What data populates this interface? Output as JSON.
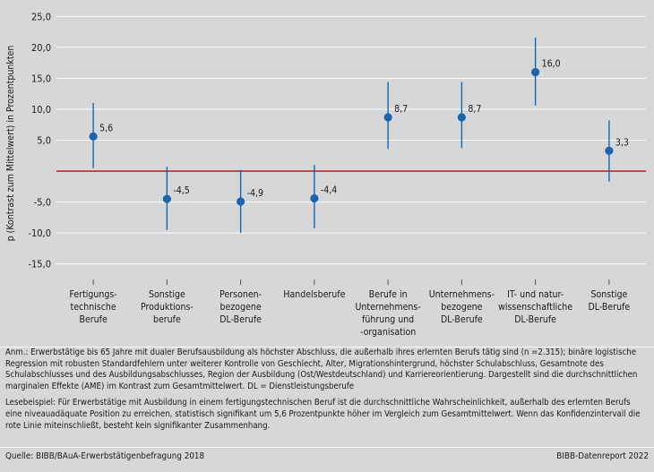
{
  "chart_data": {
    "type": "scatter",
    "ylabel": "p (Kontrast zum Mittelwert) in Prozentpunkten",
    "ylim": [
      -17.5,
      26.5
    ],
    "yticks": [
      25,
      20,
      15,
      10,
      5,
      0,
      -5,
      -10,
      -15
    ],
    "ytick_labels": [
      "25,0",
      "20,0",
      "15,0",
      "10,0",
      "5,0",
      "",
      "-5,0",
      "-10,0",
      "-15,0"
    ],
    "reference_line": 0,
    "categories": [
      "Fertigungs-\ntechnische\nBerufe",
      "Sonstige\nProduktions-\nberufe",
      "Personen-\nbezogene\nDL-Berufe",
      "Handelsberufe",
      "Berufe in\nUnternehmens-\nführung und\n-organisation",
      "Unternehmens-\nbezogene\nDL-Berufe",
      "IT- und natur-\nwissenschaftliche\nDL-Berufe",
      "Sonstige\nDL-Berufe"
    ],
    "values": [
      5.6,
      -4.5,
      -4.9,
      -4.4,
      8.7,
      8.7,
      16.0,
      3.3
    ],
    "value_labels": [
      "5,6",
      "-4,5",
      "-4,9",
      "-4,4",
      "8,7",
      "8,7",
      "16,0",
      "3,3"
    ],
    "ci_low": [
      0.5,
      -9.5,
      -10.0,
      -9.2,
      3.6,
      3.7,
      10.6,
      -1.7
    ],
    "ci_high": [
      11.0,
      0.7,
      0.2,
      1.0,
      14.4,
      14.4,
      21.6,
      8.2
    ],
    "colors": {
      "point": "#1c64b0",
      "ci": "#1c64b0",
      "reference": "#d0202a",
      "grid": "#ffffff",
      "plot_bg": "#d6d7d9"
    }
  },
  "notes": {
    "anm": "Anm.: Erwerbstätige bis 65 Jahre mit dualer Berufsausbildung als höchster Abschluss, die außerhalb ihres erlernten Berufs tätig sind (n =2.315); binäre logistische Regression mit robusten Standardfehlern unter weiterer Kontrolle von Geschlecht, Alter, Migrationshintergrund, höchster Schulabschluss, Gesamtnote des Schulabschlusses und des Ausbildungsabschlusses, Region der Ausbildung (Ost/Westdeutschland) und Karriereorientierung. Dargestellt sind die durchschnittlichen marginalen Effekte (AME) im Kontrast zum Gesamtmittelwert. DL = Dienstleistungsberufe",
    "lesebeispiel": "Lesebeispiel: Für Erwerbstätige mit Ausbildung in einem fertigungstechnischen Beruf ist die durchschnittliche Wahrscheinlichkeit, außerhalb des erlernten Berufs eine niveauadäquate Position zu erreichen, statistisch signifikant um 5,6 Prozentpunkte höher im Vergleich zum Gesamtmittelwert. Wenn das Konfidenzintervall die rote Linie miteinschließt, besteht kein signifikanter Zusammenhang."
  },
  "footer": {
    "source": "Quelle: BIBB/BAuA-Erwerbstätigenbefragung 2018",
    "report": "BIBB-Datenreport 2022"
  }
}
